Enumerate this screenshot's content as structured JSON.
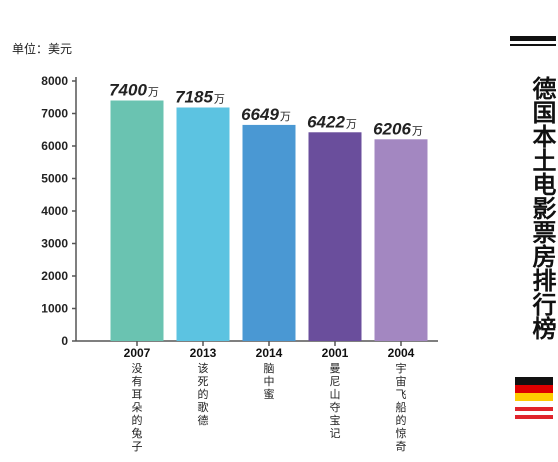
{
  "title": "德国本土电影票房排行榜",
  "unit_label": "单位：美元",
  "value_suffix": "万",
  "colors": {
    "bars": [
      "#6ac3b1",
      "#5cc3e1",
      "#4a98d3",
      "#6a4e9c",
      "#a387c1"
    ],
    "axis": "#555555",
    "flag_germany": [
      "#111111",
      "#dd0000",
      "#ffcc00"
    ],
    "flag_austria": [
      "#e0242b",
      "#ffffff",
      "#e0242b"
    ]
  },
  "chart_data": {
    "type": "bar",
    "title": "德国本土电影票房排行榜",
    "ylabel": "单位：美元",
    "ylim": [
      0,
      8000
    ],
    "yticks": [
      0,
      1000,
      2000,
      3000,
      4000,
      5000,
      6000,
      7000,
      8000
    ],
    "grid": false,
    "legend": "none",
    "categories": [
      "没有耳朵的兔子",
      "该死的歌德",
      "脑中蜜",
      "曼尼山夺宝记",
      "宇宙飞船的惊奇"
    ],
    "years": [
      "2007",
      "2013",
      "2014",
      "2001",
      "2004"
    ],
    "values": [
      7400,
      7185,
      6649,
      6422,
      6206
    ],
    "value_labels": [
      "7400",
      "7185",
      "6649",
      "6422",
      "6206"
    ]
  }
}
